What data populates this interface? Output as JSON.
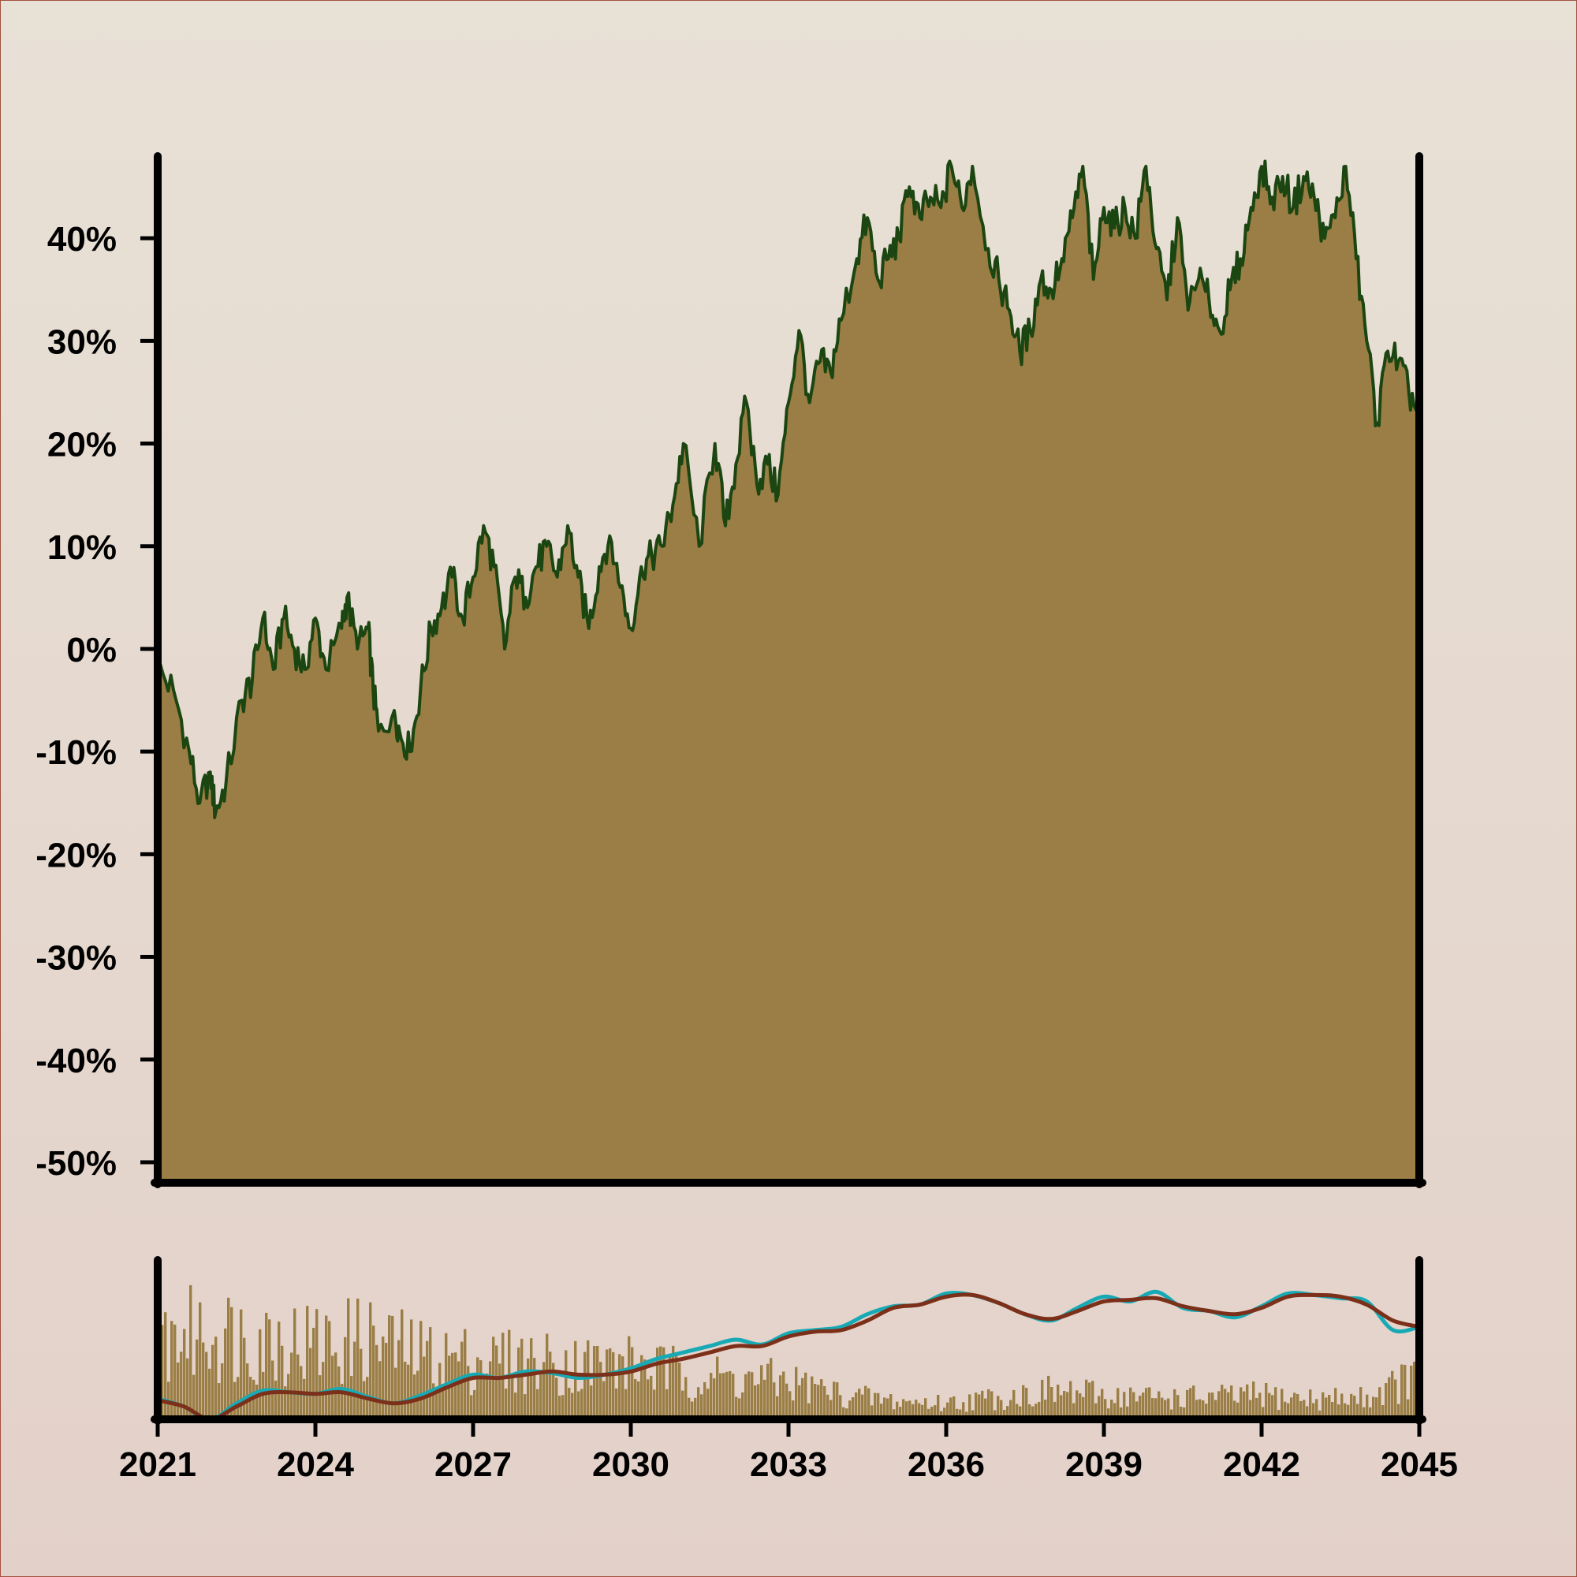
{
  "chart_data": [
    {
      "type": "area",
      "title": "",
      "xlabel": "",
      "ylabel": "",
      "x_ticks": [
        "2021",
        "2024",
        "2027",
        "2030",
        "2033",
        "2036",
        "2039",
        "2042",
        "2045"
      ],
      "y_ticks": [
        "40%",
        "30%",
        "20%",
        "10%",
        "0%",
        "-10%",
        "-20%",
        "-30%",
        "-40%",
        "-50%"
      ],
      "xlim": [
        2021,
        2045
      ],
      "ylim": [
        -52,
        48
      ],
      "grid": false,
      "colors": {
        "fill": "#9a7e45",
        "line": "#1c4611"
      },
      "points": [
        [
          2021.0,
          -2
        ],
        [
          2021.3,
          -4
        ],
        [
          2021.6,
          -10
        ],
        [
          2021.8,
          -15
        ],
        [
          2022.0,
          -12
        ],
        [
          2022.1,
          -16
        ],
        [
          2022.3,
          -13
        ],
        [
          2022.6,
          -5
        ],
        [
          2022.8,
          -3
        ],
        [
          2023.0,
          3
        ],
        [
          2023.2,
          -2
        ],
        [
          2023.4,
          3
        ],
        [
          2023.6,
          0
        ],
        [
          2023.8,
          -2
        ],
        [
          2024.0,
          3
        ],
        [
          2024.2,
          -2
        ],
        [
          2024.5,
          2
        ],
        [
          2024.6,
          5
        ],
        [
          2024.8,
          0
        ],
        [
          2025.0,
          2
        ],
        [
          2025.1,
          -4
        ],
        [
          2025.2,
          -8
        ],
        [
          2025.5,
          -6
        ],
        [
          2025.6,
          -8
        ],
        [
          2025.8,
          -10
        ],
        [
          2026.0,
          -4
        ],
        [
          2026.2,
          2
        ],
        [
          2026.4,
          4
        ],
        [
          2026.6,
          7
        ],
        [
          2026.8,
          3
        ],
        [
          2027.0,
          7
        ],
        [
          2027.2,
          12
        ],
        [
          2027.4,
          8
        ],
        [
          2027.6,
          0
        ],
        [
          2027.8,
          7
        ],
        [
          2028.0,
          5
        ],
        [
          2028.2,
          8
        ],
        [
          2028.4,
          10
        ],
        [
          2028.6,
          7
        ],
        [
          2028.8,
          12
        ],
        [
          2029.0,
          7
        ],
        [
          2029.2,
          2
        ],
        [
          2029.4,
          8
        ],
        [
          2029.6,
          11
        ],
        [
          2029.8,
          6
        ],
        [
          2030.0,
          2
        ],
        [
          2030.2,
          8
        ],
        [
          2030.4,
          9
        ],
        [
          2030.6,
          10
        ],
        [
          2030.8,
          14
        ],
        [
          2031.0,
          20
        ],
        [
          2031.3,
          10
        ],
        [
          2031.6,
          20
        ],
        [
          2031.8,
          12
        ],
        [
          2032.0,
          18
        ],
        [
          2032.2,
          24
        ],
        [
          2032.4,
          16
        ],
        [
          2032.6,
          18
        ],
        [
          2032.8,
          15
        ],
        [
          2033.0,
          24
        ],
        [
          2033.2,
          31
        ],
        [
          2033.4,
          24
        ],
        [
          2033.6,
          28
        ],
        [
          2033.8,
          27
        ],
        [
          2034.0,
          32
        ],
        [
          2034.3,
          38
        ],
        [
          2034.5,
          42
        ],
        [
          2034.7,
          36
        ],
        [
          2034.9,
          38
        ],
        [
          2035.1,
          40
        ],
        [
          2035.3,
          45
        ],
        [
          2035.5,
          42
        ],
        [
          2035.7,
          44
        ],
        [
          2035.9,
          43
        ],
        [
          2036.1,
          47
        ],
        [
          2036.3,
          43
        ],
        [
          2036.5,
          47
        ],
        [
          2036.8,
          39
        ],
        [
          2037.0,
          36
        ],
        [
          2037.2,
          33
        ],
        [
          2037.4,
          29
        ],
        [
          2037.6,
          31
        ],
        [
          2037.8,
          36
        ],
        [
          2038.0,
          35
        ],
        [
          2038.2,
          38
        ],
        [
          2038.4,
          42
        ],
        [
          2038.6,
          47
        ],
        [
          2038.8,
          36
        ],
        [
          2039.0,
          43
        ],
        [
          2039.2,
          41
        ],
        [
          2039.4,
          43
        ],
        [
          2039.6,
          40
        ],
        [
          2039.8,
          47
        ],
        [
          2040.0,
          39
        ],
        [
          2040.2,
          34
        ],
        [
          2040.4,
          42
        ],
        [
          2040.6,
          33
        ],
        [
          2040.8,
          36
        ],
        [
          2041.0,
          34
        ],
        [
          2041.2,
          31
        ],
        [
          2041.4,
          35
        ],
        [
          2041.6,
          38
        ],
        [
          2041.8,
          43
        ],
        [
          2042.0,
          47
        ],
        [
          2042.2,
          44
        ],
        [
          2042.4,
          46
        ],
        [
          2042.6,
          43
        ],
        [
          2042.8,
          46
        ],
        [
          2043.0,
          44
        ],
        [
          2043.2,
          40
        ],
        [
          2043.4,
          42
        ],
        [
          2043.6,
          47
        ],
        [
          2043.8,
          38
        ],
        [
          2044.0,
          30
        ],
        [
          2044.2,
          22
        ],
        [
          2044.4,
          29
        ],
        [
          2044.6,
          28
        ],
        [
          2044.8,
          25
        ],
        [
          2045.0,
          23
        ]
      ]
    },
    {
      "type": "bar",
      "title": "",
      "xlabel": "",
      "ylabel": "",
      "xlim": [
        2021,
        2045
      ],
      "ylim": [
        0,
        1
      ],
      "grid": false,
      "colors": {
        "bars": "#9a7e45",
        "line_fast": "#17aab5",
        "line_slow": "#7c2f19"
      },
      "volume_profile": [
        [
          2021.0,
          0.8
        ],
        [
          2022.0,
          0.88
        ],
        [
          2023.0,
          0.82
        ],
        [
          2024.0,
          0.75
        ],
        [
          2025.0,
          0.8
        ],
        [
          2026.0,
          0.65
        ],
        [
          2027.0,
          0.6
        ],
        [
          2028.0,
          0.58
        ],
        [
          2029.0,
          0.55
        ],
        [
          2030.0,
          0.55
        ],
        [
          2031.0,
          0.45
        ],
        [
          2032.0,
          0.4
        ],
        [
          2033.0,
          0.38
        ],
        [
          2034.0,
          0.25
        ],
        [
          2035.0,
          0.18
        ],
        [
          2036.0,
          0.16
        ],
        [
          2037.0,
          0.22
        ],
        [
          2038.0,
          0.28
        ],
        [
          2039.0,
          0.24
        ],
        [
          2040.0,
          0.22
        ],
        [
          2041.0,
          0.22
        ],
        [
          2042.0,
          0.24
        ],
        [
          2043.0,
          0.2
        ],
        [
          2044.0,
          0.22
        ],
        [
          2045.0,
          0.45
        ]
      ],
      "series": [
        {
          "points": [
            [
              2021.0,
              0.13
            ],
            [
              2021.5,
              0.08
            ],
            [
              2022.0,
              0.0
            ],
            [
              2022.5,
              0.1
            ],
            [
              2023.0,
              0.18
            ],
            [
              2023.5,
              0.17
            ],
            [
              2024.0,
              0.16
            ],
            [
              2024.5,
              0.19
            ],
            [
              2025.0,
              0.14
            ],
            [
              2025.5,
              0.1
            ],
            [
              2026.0,
              0.15
            ],
            [
              2026.5,
              0.22
            ],
            [
              2027.0,
              0.28
            ],
            [
              2027.5,
              0.26
            ],
            [
              2028.0,
              0.3
            ],
            [
              2028.5,
              0.29
            ],
            [
              2029.0,
              0.26
            ],
            [
              2029.5,
              0.28
            ],
            [
              2030.0,
              0.32
            ],
            [
              2030.5,
              0.38
            ],
            [
              2031.0,
              0.42
            ],
            [
              2031.5,
              0.46
            ],
            [
              2032.0,
              0.5
            ],
            [
              2032.5,
              0.47
            ],
            [
              2033.0,
              0.54
            ],
            [
              2033.5,
              0.56
            ],
            [
              2034.0,
              0.58
            ],
            [
              2034.5,
              0.66
            ],
            [
              2035.0,
              0.71
            ],
            [
              2035.5,
              0.72
            ],
            [
              2036.0,
              0.79
            ],
            [
              2036.5,
              0.78
            ],
            [
              2037.0,
              0.73
            ],
            [
              2037.5,
              0.66
            ],
            [
              2038.0,
              0.62
            ],
            [
              2038.5,
              0.7
            ],
            [
              2039.0,
              0.77
            ],
            [
              2039.5,
              0.74
            ],
            [
              2040.0,
              0.8
            ],
            [
              2040.5,
              0.7
            ],
            [
              2041.0,
              0.68
            ],
            [
              2041.5,
              0.64
            ],
            [
              2042.0,
              0.71
            ],
            [
              2042.5,
              0.79
            ],
            [
              2043.0,
              0.78
            ],
            [
              2043.5,
              0.76
            ],
            [
              2044.0,
              0.74
            ],
            [
              2044.5,
              0.56
            ],
            [
              2045.0,
              0.58
            ]
          ]
        },
        {
          "points": [
            [
              2021.0,
              0.12
            ],
            [
              2021.5,
              0.08
            ],
            [
              2022.0,
              0.0
            ],
            [
              2022.5,
              0.08
            ],
            [
              2023.0,
              0.16
            ],
            [
              2023.5,
              0.17
            ],
            [
              2024.0,
              0.16
            ],
            [
              2024.5,
              0.17
            ],
            [
              2025.0,
              0.13
            ],
            [
              2025.5,
              0.1
            ],
            [
              2026.0,
              0.13
            ],
            [
              2026.5,
              0.2
            ],
            [
              2027.0,
              0.26
            ],
            [
              2027.5,
              0.26
            ],
            [
              2028.0,
              0.28
            ],
            [
              2028.5,
              0.3
            ],
            [
              2029.0,
              0.28
            ],
            [
              2029.5,
              0.28
            ],
            [
              2030.0,
              0.3
            ],
            [
              2030.5,
              0.35
            ],
            [
              2031.0,
              0.38
            ],
            [
              2031.5,
              0.42
            ],
            [
              2032.0,
              0.46
            ],
            [
              2032.5,
              0.46
            ],
            [
              2033.0,
              0.52
            ],
            [
              2033.5,
              0.55
            ],
            [
              2034.0,
              0.56
            ],
            [
              2034.5,
              0.62
            ],
            [
              2035.0,
              0.7
            ],
            [
              2035.5,
              0.72
            ],
            [
              2036.0,
              0.77
            ],
            [
              2036.5,
              0.78
            ],
            [
              2037.0,
              0.73
            ],
            [
              2037.5,
              0.66
            ],
            [
              2038.0,
              0.63
            ],
            [
              2038.5,
              0.68
            ],
            [
              2039.0,
              0.74
            ],
            [
              2039.5,
              0.75
            ],
            [
              2040.0,
              0.76
            ],
            [
              2040.5,
              0.71
            ],
            [
              2041.0,
              0.68
            ],
            [
              2041.5,
              0.66
            ],
            [
              2042.0,
              0.7
            ],
            [
              2042.5,
              0.77
            ],
            [
              2043.0,
              0.78
            ],
            [
              2043.5,
              0.77
            ],
            [
              2044.0,
              0.72
            ],
            [
              2044.5,
              0.62
            ],
            [
              2045.0,
              0.58
            ]
          ]
        }
      ]
    }
  ]
}
